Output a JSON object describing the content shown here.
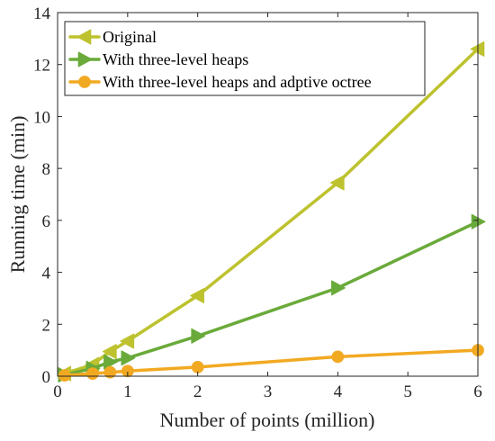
{
  "chart_data": {
    "type": "line",
    "title": "",
    "xlabel": "Number of points (million)",
    "ylabel": "Running time (min)",
    "xlim": [
      0,
      6
    ],
    "ylim": [
      0,
      14
    ],
    "xticks": [
      "0",
      "1",
      "2",
      "3",
      "4",
      "5",
      "6"
    ],
    "yticks": [
      "0",
      "2",
      "4",
      "6",
      "8",
      "10",
      "12",
      "14"
    ],
    "grid": false,
    "legend_position": "top-left",
    "x": [
      0.1,
      0.5,
      0.75,
      1,
      2,
      4,
      6
    ],
    "series": [
      {
        "name": "Original",
        "marker": "triangle-left",
        "color": "#BDC22E",
        "values": [
          0.1,
          0.45,
          0.95,
          1.35,
          3.1,
          7.45,
          12.6
        ]
      },
      {
        "name": "With three-level heaps",
        "marker": "triangle-right",
        "color": "#6AAA3A",
        "values": [
          0.05,
          0.3,
          0.55,
          0.7,
          1.55,
          3.4,
          5.95
        ]
      },
      {
        "name": "With three-level heaps and adptive octree",
        "marker": "circle",
        "color": "#F2A922",
        "values": [
          0.03,
          0.1,
          0.15,
          0.2,
          0.35,
          0.75,
          1.0
        ]
      }
    ]
  }
}
